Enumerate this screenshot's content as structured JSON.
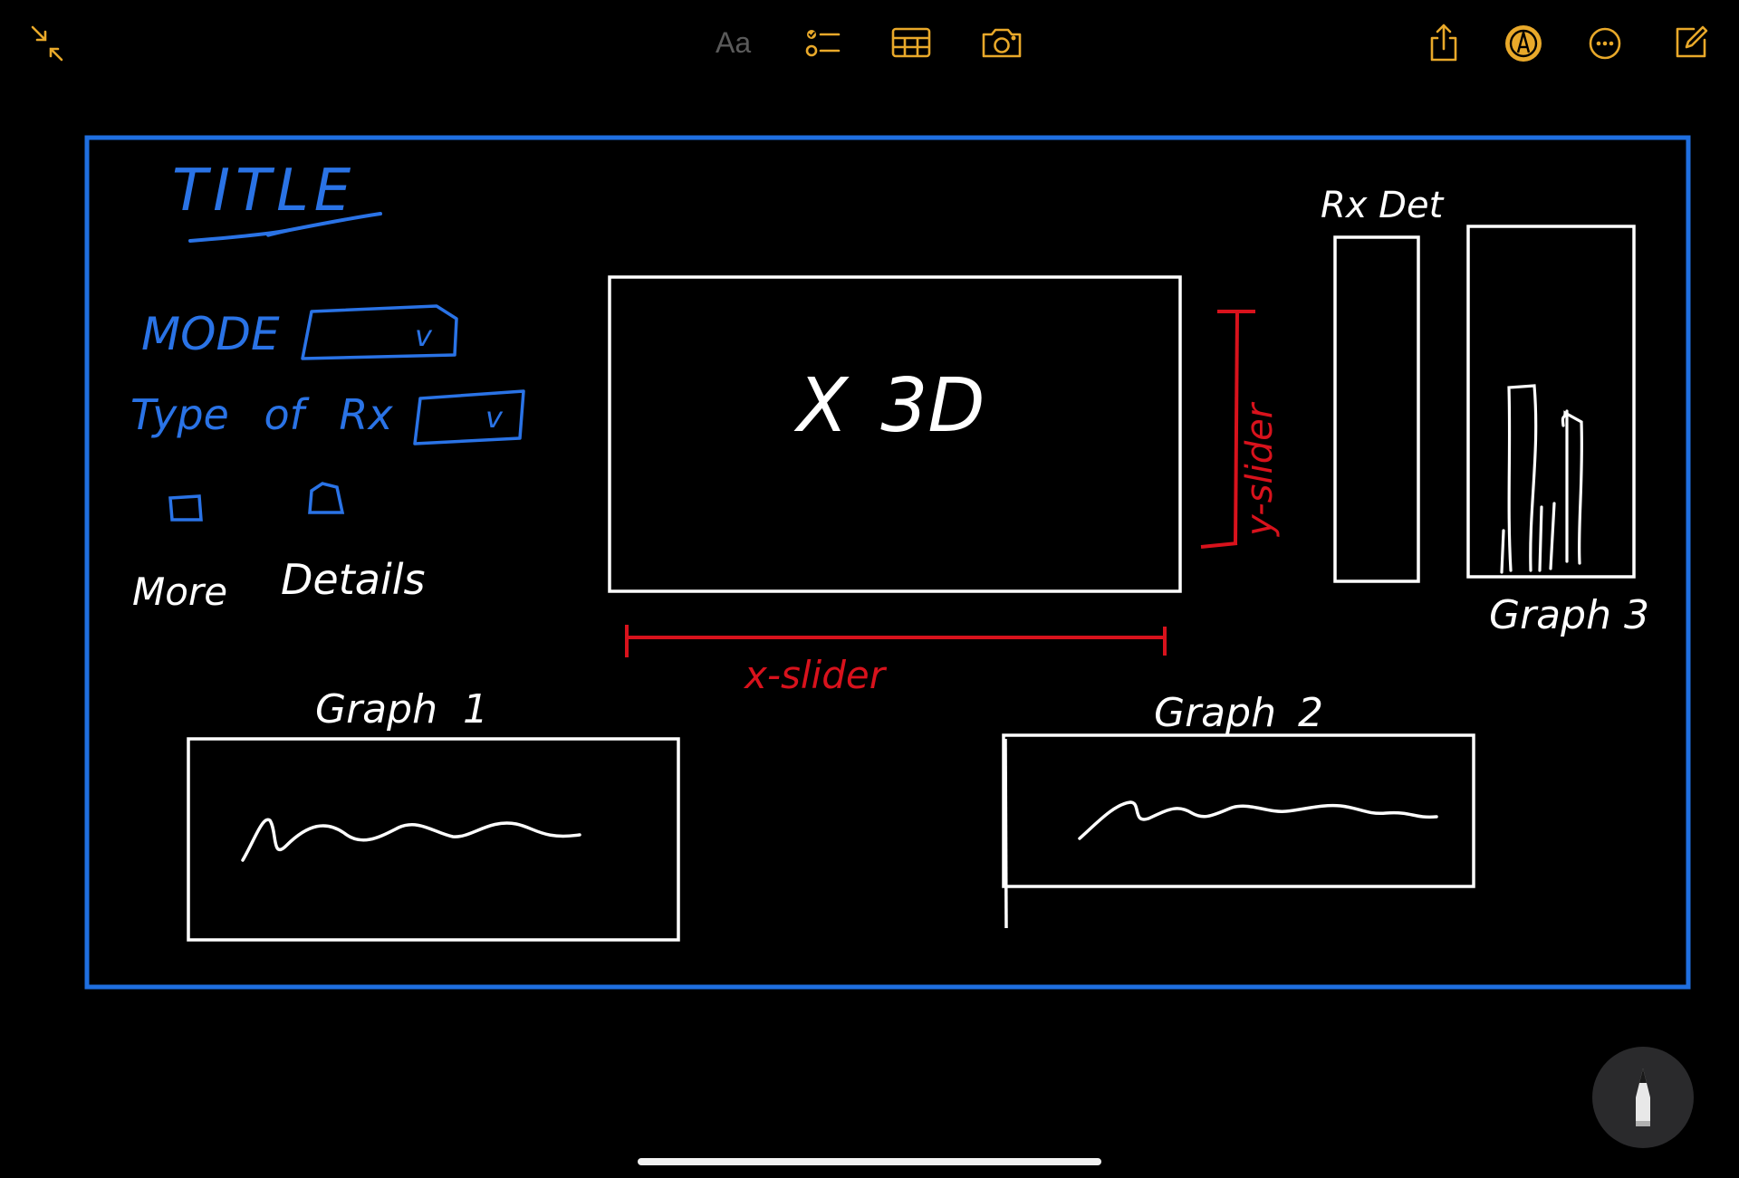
{
  "toolbar": {
    "format_label": "Aa",
    "icons": [
      "collapse-icon",
      "text-format-icon",
      "checklist-icon",
      "table-icon",
      "camera-icon",
      "share-icon",
      "markup-icon",
      "more-icon",
      "compose-icon"
    ]
  },
  "colors": {
    "accent": "#e9a92a",
    "frame_blue": "#1f6fe0",
    "ink_blue": "#2a73e6",
    "ink_white": "#ffffff",
    "ink_red": "#d8121c",
    "format_gray": "#5a5a5a"
  },
  "sketch": {
    "title": "TITLE",
    "mode_label": "MODE",
    "mode_dropdown_symbol": "v",
    "rx_type_label": "Type of Rx",
    "rx_type_dropdown_symbol": "v",
    "checkbox_more_label": "More",
    "checkbox_details_label": "Details",
    "main_view_label": "X 3D",
    "y_slider_label": "y-slider",
    "x_slider_label": "x-slider",
    "rx_det_label": "Rx Det",
    "graph1_label": "Graph 1",
    "graph2_label": "Graph 2",
    "graph3_label": "Graph 3"
  }
}
